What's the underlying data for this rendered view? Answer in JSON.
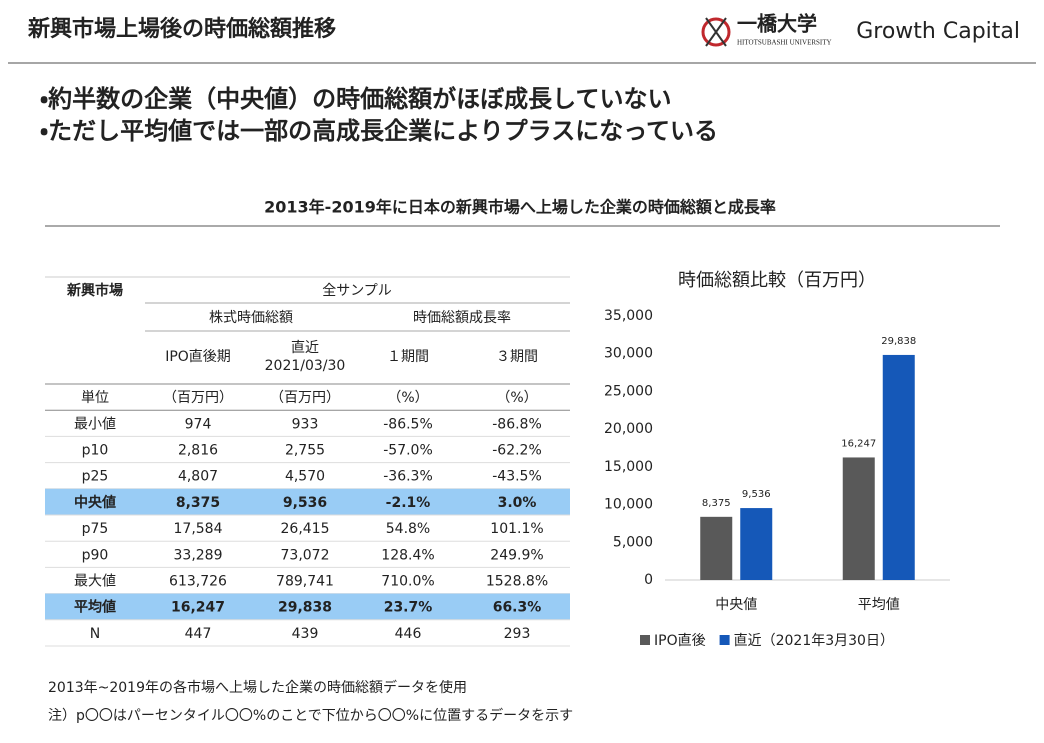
{
  "header": {
    "title": "新興市場上場後の時価総額推移",
    "logo_text": "一橋大学",
    "logo_sub": "HITOTSUBASHI UNIVERSITY",
    "brand": "Growth Capital"
  },
  "bullets": [
    "・約半数の企業（中央値）の時価総額がほぼ成長していない",
    "・ただし平均値では一部の高成長企業によりプラスになっている"
  ],
  "section_title": "2013年-2019年に日本の新興市場へ上場した企業の時価総額と成長率",
  "table": {
    "corner": "新興市場",
    "group": "全サンプル",
    "subgroups": [
      "株式時価総額",
      "時価総額成長率"
    ],
    "columns": [
      [
        "IPO直後期"
      ],
      [
        "直近",
        "2021/03/30"
      ],
      [
        "１期間"
      ],
      [
        "３期間"
      ]
    ],
    "rows": [
      [
        "単位",
        "（百万円）",
        "（百万円）",
        "（%）",
        "（%）"
      ],
      [
        "最小値",
        "974",
        "933",
        "-86.5%",
        "-86.8%"
      ],
      [
        "p10",
        "2,816",
        "2,755",
        "-57.0%",
        "-62.2%"
      ],
      [
        "p25",
        "4,807",
        "4,570",
        "-36.3%",
        "-43.5%"
      ],
      [
        "中央値",
        "8,375",
        "9,536",
        "-2.1%",
        "3.0%"
      ],
      [
        "p75",
        "17,584",
        "26,415",
        "54.8%",
        "101.1%"
      ],
      [
        "p90",
        "33,289",
        "73,072",
        "128.4%",
        "249.9%"
      ],
      [
        "最大値",
        "613,726",
        "789,741",
        "710.0%",
        "1528.8%"
      ],
      [
        "平均値",
        "16,247",
        "29,838",
        "23.7%",
        "66.3%"
      ],
      [
        "N",
        "447",
        "439",
        "446",
        "293"
      ]
    ],
    "highlight_rows": [
      4,
      8
    ],
    "highlight_color": "#99ccf5"
  },
  "chart_data": {
    "type": "bar",
    "title": "時価総額比較（百万円）",
    "categories": [
      "中央値",
      "平均値"
    ],
    "series": [
      {
        "name": "IPO直後",
        "color": "#595959",
        "values": [
          8375,
          16247
        ],
        "value_labels": [
          "8,375",
          "16,247"
        ]
      },
      {
        "name": "直近（2021年3月30日）",
        "color": "#1558b8",
        "values": [
          9536,
          29838
        ],
        "value_labels": [
          "9,536",
          "29,838"
        ]
      }
    ],
    "ylim": [
      0,
      35000
    ],
    "yticks": [
      0,
      {
        "value": 5000,
        "label": "5,000"
      },
      {
        "value": 10000,
        "label": "10,000"
      },
      {
        "value": 15000,
        "label": "15,000"
      },
      {
        "value": 20000,
        "label": "20,000"
      },
      {
        "value": 25000,
        "label": "25,000"
      },
      {
        "value": 30000,
        "label": "30,000"
      },
      {
        "value": 35000,
        "label": "35,000"
      }
    ],
    "grid": false,
    "legend": "bottom"
  },
  "footnotes": [
    "2013年~2019年の各市場へ上場した企業の時価総額データを使用",
    "注）p〇〇はパーセンタイル〇〇%のことで下位から〇〇%に位置するデータを示す"
  ]
}
